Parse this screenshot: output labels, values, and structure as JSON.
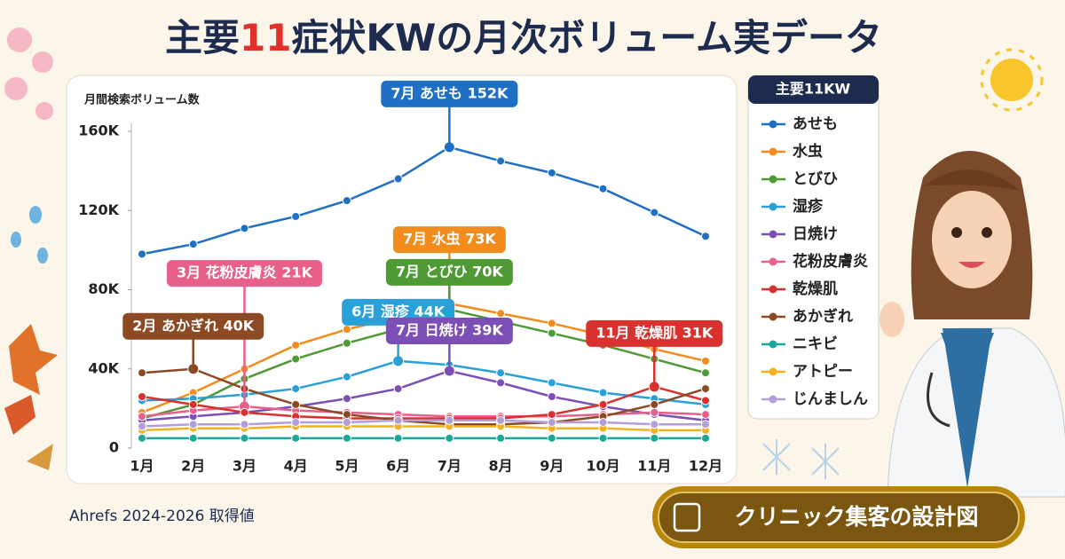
{
  "chart_data": {
    "type": "line",
    "title": "主要11症状KWの月次ボリューム実データ",
    "y_axis_label": "月間検索ボリューム数",
    "legend_title": "主要11KW",
    "source_note": "Ahrefs 2024-2026 取得値",
    "banner": "クリニック集客の設計図",
    "categories": [
      "1月",
      "2月",
      "3月",
      "4月",
      "5月",
      "6月",
      "7月",
      "8月",
      "9月",
      "10月",
      "11月",
      "12月"
    ],
    "ylim": [
      0,
      160000
    ],
    "yticks": [
      0,
      {
        "value": 40000,
        "label": "40K"
      },
      {
        "value": 80000,
        "label": "80K"
      },
      {
        "value": 120000,
        "label": "120K"
      },
      {
        "value": 160000,
        "label": "160K"
      }
    ],
    "grid": false,
    "legend": "right",
    "series": [
      {
        "name": "あせも",
        "color": "#1f6fc5",
        "values": [
          98000,
          103000,
          111000,
          117000,
          125000,
          136000,
          152000,
          145000,
          139000,
          131000,
          119000,
          107000
        ],
        "value_labels": [
          null,
          null,
          null,
          null,
          null,
          null,
          "7月 あせも 152K",
          null,
          null,
          null,
          null,
          null
        ]
      },
      {
        "name": "水虫",
        "color": "#f28c1e",
        "values": [
          18000,
          28000,
          40000,
          52000,
          60000,
          66000,
          73000,
          68000,
          63000,
          57000,
          50000,
          44000
        ],
        "value_labels": [
          null,
          null,
          null,
          null,
          null,
          null,
          "7月 水虫 73K",
          null,
          null,
          null,
          null,
          null
        ]
      },
      {
        "name": "とびひ",
        "color": "#4f9a34",
        "values": [
          15000,
          22000,
          35000,
          45000,
          53000,
          60000,
          70000,
          64000,
          58000,
          52000,
          45000,
          38000
        ],
        "value_labels": [
          null,
          null,
          null,
          null,
          null,
          null,
          "7月 とびひ 70K",
          null,
          null,
          null,
          null,
          null
        ]
      },
      {
        "name": "湿疹",
        "color": "#2aa0d8",
        "values": [
          24000,
          25000,
          27000,
          30000,
          36000,
          44000,
          42000,
          38000,
          33000,
          28000,
          25000,
          22000
        ],
        "value_labels": [
          null,
          null,
          null,
          null,
          null,
          "6月 湿疹 44K",
          null,
          null,
          null,
          null,
          null,
          null
        ]
      },
      {
        "name": "日焼け",
        "color": "#7b4fb5",
        "values": [
          14000,
          16000,
          18000,
          21000,
          25000,
          30000,
          39000,
          33000,
          26000,
          21000,
          17000,
          14000
        ],
        "value_labels": [
          null,
          null,
          null,
          null,
          null,
          null,
          "7月 日焼け 39K",
          null,
          null,
          null,
          null,
          null
        ]
      },
      {
        "name": "花粉皮膚炎",
        "color": "#e8608a",
        "values": [
          16000,
          19000,
          21000,
          19000,
          18000,
          17000,
          16000,
          16000,
          16000,
          17000,
          18000,
          17000
        ],
        "value_labels": [
          null,
          null,
          "3月 花粉皮膚炎 21K",
          null,
          null,
          null,
          null,
          null,
          null,
          null,
          null,
          null
        ]
      },
      {
        "name": "乾燥肌",
        "color": "#d9322e",
        "values": [
          26000,
          22000,
          18000,
          16000,
          15000,
          15000,
          15000,
          15000,
          17000,
          22000,
          31000,
          24000
        ],
        "value_labels": [
          null,
          null,
          null,
          null,
          null,
          null,
          null,
          null,
          null,
          null,
          "11月 乾燥肌 31K",
          null
        ]
      },
      {
        "name": "あかぎれ",
        "color": "#8b4a23",
        "values": [
          38000,
          40000,
          30000,
          22000,
          17000,
          14000,
          12000,
          12000,
          13000,
          16000,
          22000,
          30000
        ],
        "value_labels": [
          null,
          "2月 あかぎれ 40K",
          null,
          null,
          null,
          null,
          null,
          null,
          null,
          null,
          null,
          null
        ]
      },
      {
        "name": "ニキビ",
        "color": "#1aa89a",
        "values": [
          5000,
          5000,
          5000,
          5000,
          5000,
          5000,
          5000,
          5000,
          5000,
          5000,
          5000,
          5000
        ]
      },
      {
        "name": "アトピー",
        "color": "#f2b21f",
        "values": [
          9000,
          10000,
          10000,
          11000,
          11000,
          11000,
          11000,
          11000,
          10000,
          10000,
          9000,
          9000
        ]
      },
      {
        "name": "じんましん",
        "color": "#b39ddb",
        "values": [
          11000,
          12000,
          12000,
          13000,
          13000,
          14000,
          14000,
          14000,
          13000,
          13000,
          12000,
          12000
        ]
      }
    ]
  }
}
